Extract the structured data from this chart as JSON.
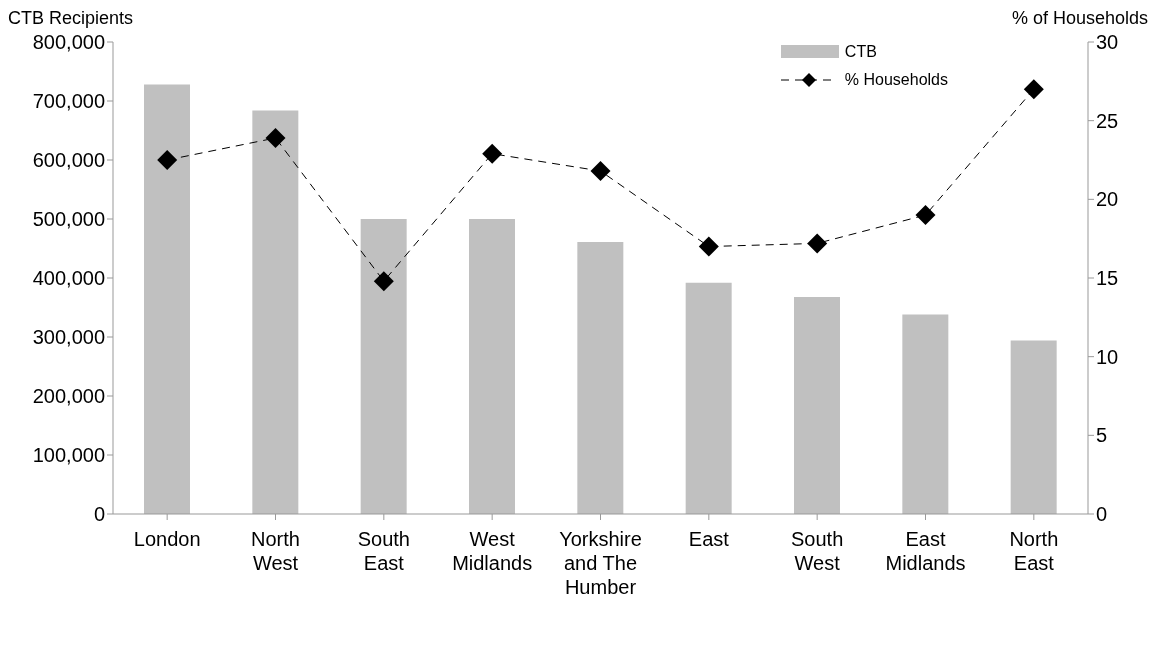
{
  "chart_data": {
    "type": "bar",
    "ylabel": "CTB Recipients",
    "y2label": "% of Households",
    "categories": [
      "London",
      "North West",
      "South East",
      "West Midlands",
      "Yorkshire and The Humber",
      "East",
      "South West",
      "East Midlands",
      "North East"
    ],
    "series": [
      {
        "name": "CTB",
        "color": "#c0c0c0",
        "values": [
          728000,
          684000,
          500000,
          500000,
          461000,
          392000,
          368000,
          338000,
          294000
        ]
      },
      {
        "name": "% Households",
        "type": "line",
        "axis": "y2",
        "color": "#000000",
        "values": [
          22.5,
          23.9,
          14.8,
          22.9,
          21.8,
          17.0,
          17.2,
          19.0,
          27.0
        ]
      }
    ],
    "ylim": [
      0,
      800000
    ],
    "yticks": [
      {
        "value": 0,
        "label": "0"
      },
      {
        "value": 100000,
        "label": "100,000"
      },
      {
        "value": 200000,
        "label": "200,000"
      },
      {
        "value": 300000,
        "label": "300,000"
      },
      {
        "value": 400000,
        "label": "400,000"
      },
      {
        "value": 500000,
        "label": "500,000"
      },
      {
        "value": 600000,
        "label": "600,000"
      },
      {
        "value": 700000,
        "label": "700,000"
      },
      {
        "value": 800000,
        "label": "800,000"
      }
    ],
    "y2lim": [
      0,
      30
    ],
    "y2ticks": [
      0,
      5,
      10,
      15,
      20,
      25,
      30
    ],
    "grid": false,
    "legend": "top right",
    "marker": "diamond",
    "line_style": "dashed"
  }
}
